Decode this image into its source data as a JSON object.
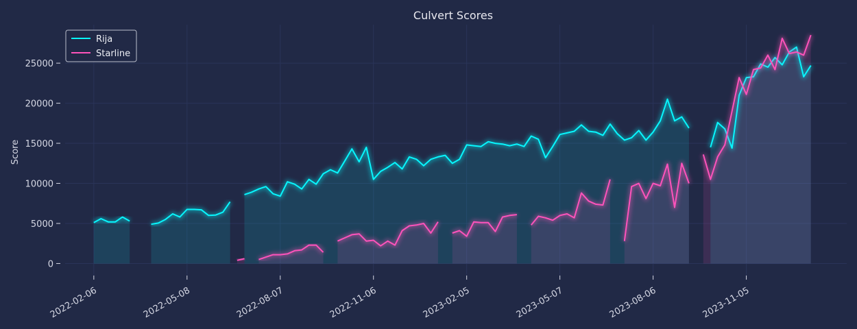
{
  "chart_data": {
    "type": "line",
    "title": "Culvert Scores",
    "xlabel": "",
    "ylabel": "Score",
    "x_ticks": [
      "2022-02-06",
      "2022-05-08",
      "2022-08-07",
      "2022-11-06",
      "2023-02-05",
      "2023-05-07",
      "2023-08-06",
      "2023-11-05"
    ],
    "y_ticks": [
      0,
      5000,
      10000,
      15000,
      20000,
      25000
    ],
    "xlim": [
      "2022-01-09",
      "2024-02-11"
    ],
    "ylim": [
      -1500,
      29800
    ],
    "grid": true,
    "legend_position": "top-left",
    "colors": {
      "background": "#212946",
      "grid": "#2A3459",
      "Rija": "#08F7FE",
      "Starline": "#FE53BB",
      "Rija_fill": "#08F7FE",
      "Starline_fill": "#FE53BB"
    },
    "series": [
      {
        "name": "Rija",
        "points": [
          [
            "2022-02-06",
            5100
          ],
          [
            "2022-02-13",
            5600
          ],
          [
            "2022-02-20",
            5200
          ],
          [
            "2022-02-27",
            5200
          ],
          [
            "2022-03-06",
            5800
          ],
          [
            "2022-03-13",
            5300
          ],
          null,
          [
            "2022-04-03",
            4900
          ],
          [
            "2022-04-10",
            5050
          ],
          [
            "2022-04-17",
            5500
          ],
          [
            "2022-04-24",
            6200
          ],
          [
            "2022-05-01",
            5800
          ],
          [
            "2022-05-08",
            6750
          ],
          [
            "2022-05-15",
            6750
          ],
          [
            "2022-05-22",
            6700
          ],
          [
            "2022-05-29",
            6000
          ],
          [
            "2022-06-05",
            6050
          ],
          [
            "2022-06-12",
            6400
          ],
          [
            "2022-06-19",
            7700
          ],
          null,
          [
            "2022-07-03",
            8600
          ],
          [
            "2022-07-10",
            8900
          ],
          [
            "2022-07-17",
            9300
          ],
          [
            "2022-07-24",
            9600
          ],
          [
            "2022-07-31",
            8700
          ],
          [
            "2022-08-07",
            8400
          ],
          [
            "2022-08-14",
            10200
          ],
          [
            "2022-08-21",
            9900
          ],
          [
            "2022-08-28",
            9300
          ],
          [
            "2022-09-04",
            10500
          ],
          [
            "2022-09-11",
            9900
          ],
          [
            "2022-09-18",
            11200
          ],
          [
            "2022-09-25",
            11700
          ],
          [
            "2022-10-02",
            11300
          ],
          [
            "2022-10-09",
            12800
          ],
          [
            "2022-10-16",
            14300
          ],
          [
            "2022-10-23",
            12700
          ],
          [
            "2022-10-30",
            14500
          ],
          [
            "2022-11-06",
            10500
          ],
          [
            "2022-11-13",
            11500
          ],
          [
            "2022-11-20",
            12000
          ],
          [
            "2022-11-27",
            12600
          ],
          [
            "2022-12-04",
            11800
          ],
          [
            "2022-12-11",
            13300
          ],
          [
            "2022-12-18",
            13000
          ],
          [
            "2022-12-25",
            12200
          ],
          [
            "2023-01-01",
            13000
          ],
          [
            "2023-01-08",
            13300
          ],
          [
            "2023-01-15",
            13500
          ],
          [
            "2023-01-22",
            12500
          ],
          [
            "2023-01-29",
            13000
          ],
          [
            "2023-02-05",
            14800
          ],
          [
            "2023-02-12",
            14700
          ],
          [
            "2023-02-19",
            14600
          ],
          [
            "2023-02-26",
            15200
          ],
          [
            "2023-03-05",
            15000
          ],
          [
            "2023-03-12",
            14900
          ],
          [
            "2023-03-19",
            14700
          ],
          [
            "2023-03-26",
            14900
          ],
          [
            "2023-04-02",
            14600
          ],
          [
            "2023-04-09",
            15900
          ],
          [
            "2023-04-16",
            15500
          ],
          [
            "2023-04-23",
            13200
          ],
          [
            "2023-04-30",
            14600
          ],
          [
            "2023-05-07",
            16100
          ],
          [
            "2023-05-14",
            16300
          ],
          [
            "2023-05-21",
            16500
          ],
          [
            "2023-05-28",
            17300
          ],
          [
            "2023-06-04",
            16500
          ],
          [
            "2023-06-11",
            16400
          ],
          [
            "2023-06-18",
            16000
          ],
          [
            "2023-06-25",
            17400
          ],
          [
            "2023-07-02",
            16200
          ],
          [
            "2023-07-09",
            15400
          ],
          [
            "2023-07-16",
            15700
          ],
          [
            "2023-07-23",
            16600
          ],
          [
            "2023-07-30",
            15400
          ],
          [
            "2023-08-06",
            16400
          ],
          [
            "2023-08-13",
            17800
          ],
          [
            "2023-08-20",
            20500
          ],
          [
            "2023-08-27",
            17800
          ],
          [
            "2023-09-03",
            18300
          ],
          [
            "2023-09-10",
            16900
          ],
          null,
          [
            "2023-10-01",
            14500
          ],
          [
            "2023-10-08",
            17600
          ],
          [
            "2023-10-15",
            16800
          ],
          [
            "2023-10-22",
            14400
          ],
          [
            "2023-10-29",
            21000
          ],
          [
            "2023-11-05",
            23200
          ],
          [
            "2023-11-12",
            23300
          ],
          [
            "2023-11-19",
            24900
          ],
          [
            "2023-11-26",
            24500
          ],
          [
            "2023-12-03",
            25700
          ],
          [
            "2023-12-10",
            24800
          ],
          [
            "2023-12-17",
            26400
          ],
          [
            "2023-12-24",
            27000
          ],
          [
            "2023-12-31",
            23300
          ],
          [
            "2024-01-07",
            24700
          ]
        ]
      },
      {
        "name": "Starline",
        "points": [
          [
            "2022-06-26",
            400
          ],
          [
            "2022-07-03",
            600
          ],
          null,
          [
            "2022-07-17",
            500
          ],
          [
            "2022-07-24",
            800
          ],
          [
            "2022-07-31",
            1100
          ],
          [
            "2022-08-07",
            1100
          ],
          [
            "2022-08-14",
            1200
          ],
          [
            "2022-08-21",
            1600
          ],
          [
            "2022-08-28",
            1700
          ],
          [
            "2022-09-04",
            2300
          ],
          [
            "2022-09-11",
            2300
          ],
          [
            "2022-09-18",
            1400
          ],
          null,
          [
            "2022-10-02",
            2800
          ],
          [
            "2022-10-09",
            3200
          ],
          [
            "2022-10-16",
            3600
          ],
          [
            "2022-10-23",
            3700
          ],
          [
            "2022-10-30",
            2800
          ],
          [
            "2022-11-06",
            2900
          ],
          [
            "2022-11-13",
            2200
          ],
          [
            "2022-11-20",
            2800
          ],
          [
            "2022-11-27",
            2300
          ],
          [
            "2022-12-04",
            4100
          ],
          [
            "2022-12-11",
            4700
          ],
          [
            "2022-12-18",
            4800
          ],
          [
            "2022-12-25",
            5000
          ],
          [
            "2023-01-01",
            3800
          ],
          [
            "2023-01-08",
            5200
          ],
          null,
          [
            "2023-01-22",
            3800
          ],
          [
            "2023-01-29",
            4100
          ],
          [
            "2023-02-05",
            3400
          ],
          [
            "2023-02-12",
            5200
          ],
          [
            "2023-02-19",
            5100
          ],
          [
            "2023-02-26",
            5100
          ],
          [
            "2023-03-05",
            4000
          ],
          [
            "2023-03-12",
            5800
          ],
          [
            "2023-03-19",
            6000
          ],
          [
            "2023-03-26",
            6100
          ],
          null,
          [
            "2023-04-09",
            4800
          ],
          [
            "2023-04-16",
            5900
          ],
          [
            "2023-04-23",
            5700
          ],
          [
            "2023-04-30",
            5400
          ],
          [
            "2023-05-07",
            6000
          ],
          [
            "2023-05-14",
            6200
          ],
          [
            "2023-05-21",
            5700
          ],
          [
            "2023-05-28",
            8800
          ],
          [
            "2023-06-04",
            7800
          ],
          [
            "2023-06-11",
            7400
          ],
          [
            "2023-06-18",
            7300
          ],
          [
            "2023-06-25",
            10500
          ],
          null,
          [
            "2023-07-09",
            2800
          ],
          [
            "2023-07-16",
            9600
          ],
          [
            "2023-07-23",
            10000
          ],
          [
            "2023-07-30",
            8100
          ],
          [
            "2023-08-06",
            10000
          ],
          [
            "2023-08-13",
            9700
          ],
          [
            "2023-08-20",
            12400
          ],
          [
            "2023-08-27",
            7000
          ],
          [
            "2023-09-03",
            12500
          ],
          [
            "2023-09-10",
            10000
          ],
          null,
          [
            "2023-09-24",
            13600
          ],
          [
            "2023-10-01",
            10500
          ],
          [
            "2023-10-08",
            13300
          ],
          [
            "2023-10-15",
            14800
          ],
          [
            "2023-10-22",
            19000
          ],
          [
            "2023-10-29",
            23200
          ],
          [
            "2023-11-05",
            21100
          ],
          [
            "2023-11-12",
            24200
          ],
          [
            "2023-11-19",
            24400
          ],
          [
            "2023-11-26",
            26000
          ],
          [
            "2023-12-03",
            24200
          ],
          [
            "2023-12-10",
            28100
          ],
          [
            "2023-12-17",
            26200
          ],
          [
            "2023-12-24",
            26400
          ],
          [
            "2023-12-31",
            26000
          ],
          [
            "2024-01-07",
            28500
          ]
        ]
      }
    ]
  }
}
